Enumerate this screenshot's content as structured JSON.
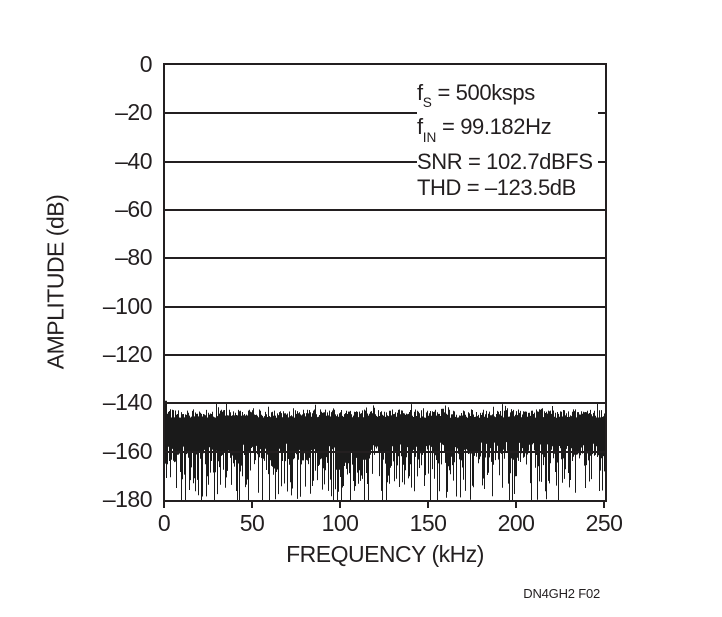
{
  "figure": {
    "id_label": "DN4GH2 F02",
    "background_color": "#ffffff",
    "ink_color": "#231f20"
  },
  "chart_data": {
    "type": "bar",
    "title": "",
    "xlabel": "FREQUENCY (kHz)",
    "ylabel": "AMPLITUDE (dB)",
    "xlim": [
      0,
      250
    ],
    "ylim": [
      -180,
      0
    ],
    "x_ticks": [
      0,
      50,
      100,
      150,
      200,
      250
    ],
    "x_tick_display": [
      "0",
      "50",
      "100",
      "150",
      "200",
      "250"
    ],
    "y_ticks": [
      0,
      -20,
      -40,
      -60,
      -80,
      -100,
      -120,
      -140,
      -160,
      -180
    ],
    "y_tick_display": [
      "0",
      "–20",
      "–40",
      "–60",
      "–80",
      "–100",
      "–120",
      "–140",
      "–160",
      "–180"
    ],
    "grid": "horizontal-gridlines-every-20dB",
    "legend": "none",
    "series_description": "FFT noise floor spanning 0 to 250 kHz: jagged top envelope near -143 to -146 dB (occasional spikes to about -138 dB, slightly taller spike at 0 kHz), solid dense mass down to about -156 to -164 dB, striped downward excursions reaching -180 dB",
    "annotations": [
      {
        "pre": "f",
        "sub": "S",
        "post": " = 500ksps"
      },
      {
        "pre": "f",
        "sub": "IN",
        "post": " = 99.182Hz"
      },
      {
        "pre": "SNR",
        "sub": "",
        "post": " = 102.7dBFS"
      },
      {
        "pre": "THD",
        "sub": "",
        "post": " = –123.5dB"
      }
    ],
    "noise_model": {
      "seed": 7,
      "columns": 440,
      "top_base_db": -142.5,
      "top_jitter_db": 3.5,
      "spike_probability": 0.1,
      "spike_extra_db": 3,
      "left_spike_columns": 2,
      "left_spike_top_db": -137.5,
      "solid_bottom_base_db": -156,
      "solid_bottom_jitter_db": 8,
      "tail_probability": 0.8,
      "tail_power": 2.0,
      "tail_max_extra_db": 22,
      "floor_db": -180
    }
  }
}
